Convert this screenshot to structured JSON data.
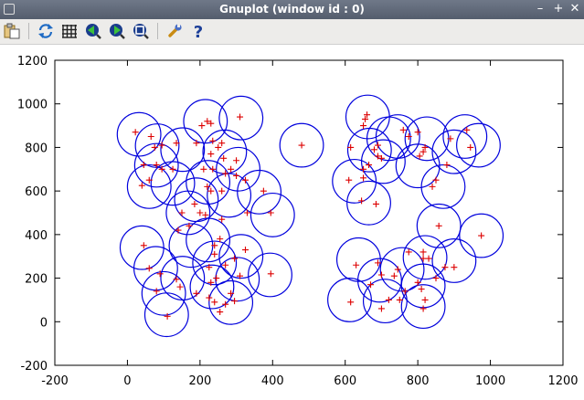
{
  "window": {
    "title": "Gnuplot (window id : 0)",
    "minimize": "–",
    "maximize": "+",
    "close": "✕"
  },
  "toolbar": {
    "items": [
      {
        "icon": "copy-clipboard-icon"
      },
      {
        "icon": "replot-icon"
      },
      {
        "icon": "grid-icon"
      },
      {
        "icon": "zoom-previous-icon"
      },
      {
        "icon": "zoom-next-icon"
      },
      {
        "icon": "unzoom-icon"
      },
      {
        "icon": "settings-wrench-icon"
      },
      {
        "icon": "help-icon"
      }
    ]
  },
  "colors": {
    "circle": "#0000dd",
    "point": "#dd0000",
    "frame": "#000000"
  },
  "chart_data": {
    "type": "scatter",
    "title": "",
    "xlabel": "",
    "ylabel": "",
    "xlim": [
      -200,
      1200
    ],
    "ylim": [
      -200,
      1200
    ],
    "xticks": [
      -200,
      0,
      200,
      400,
      600,
      800,
      1000,
      1200
    ],
    "yticks": [
      -200,
      0,
      200,
      400,
      600,
      800,
      1000,
      1200
    ],
    "xtick_labels": [
      "-200",
      "0",
      "200",
      "400",
      "600",
      "800",
      "1000",
      "1200"
    ],
    "ytick_labels": [
      "-200",
      "0",
      "200",
      "400",
      "600",
      "800",
      "1000",
      "1200"
    ],
    "grid": false,
    "legend": "none",
    "circle_radius": 60,
    "circles": [
      [
        32,
        860
      ],
      [
        82,
        808
      ],
      [
        80,
        718
      ],
      [
        60,
        620
      ],
      [
        152,
        790
      ],
      [
        125,
        635
      ],
      [
        167,
        500
      ],
      [
        190,
        560
      ],
      [
        222,
        640
      ],
      [
        215,
        920
      ],
      [
        268,
        780
      ],
      [
        305,
        700
      ],
      [
        313,
        935
      ],
      [
        280,
        580
      ],
      [
        363,
        595
      ],
      [
        400,
        490
      ],
      [
        480,
        810
      ],
      [
        40,
        340
      ],
      [
        78,
        245
      ],
      [
        100,
        130
      ],
      [
        108,
        32
      ],
      [
        152,
        200
      ],
      [
        175,
        350
      ],
      [
        222,
        375
      ],
      [
        240,
        270
      ],
      [
        233,
        160
      ],
      [
        285,
        88
      ],
      [
        303,
        195
      ],
      [
        313,
        300
      ],
      [
        393,
        215
      ],
      [
        637,
        285
      ],
      [
        662,
        940
      ],
      [
        667,
        788
      ],
      [
        665,
        545
      ],
      [
        705,
        735
      ],
      [
        745,
        850
      ],
      [
        800,
        715
      ],
      [
        825,
        840
      ],
      [
        870,
        620
      ],
      [
        900,
        780
      ],
      [
        930,
        850
      ],
      [
        967,
        810
      ],
      [
        975,
        395
      ],
      [
        858,
        440
      ],
      [
        900,
        280
      ],
      [
        820,
        295
      ],
      [
        815,
        165
      ],
      [
        757,
        240
      ],
      [
        695,
        190
      ],
      [
        710,
        95
      ],
      [
        815,
        70
      ],
      [
        612,
        100
      ],
      [
        625,
        645
      ],
      [
        720,
        840
      ]
    ],
    "points": [
      [
        22,
        870
      ],
      [
        65,
        850
      ],
      [
        75,
        800
      ],
      [
        95,
        810
      ],
      [
        135,
        820
      ],
      [
        80,
        720
      ],
      [
        95,
        700
      ],
      [
        45,
        720
      ],
      [
        60,
        650
      ],
      [
        40,
        625
      ],
      [
        125,
        700
      ],
      [
        190,
        820
      ],
      [
        205,
        900
      ],
      [
        220,
        920
      ],
      [
        230,
        910
      ],
      [
        310,
        940
      ],
      [
        235,
        830
      ],
      [
        250,
        800
      ],
      [
        260,
        820
      ],
      [
        230,
        770
      ],
      [
        265,
        750
      ],
      [
        300,
        740
      ],
      [
        285,
        700
      ],
      [
        270,
        680
      ],
      [
        300,
        670
      ],
      [
        325,
        650
      ],
      [
        210,
        700
      ],
      [
        235,
        700
      ],
      [
        260,
        600
      ],
      [
        220,
        620
      ],
      [
        230,
        600
      ],
      [
        185,
        540
      ],
      [
        200,
        500
      ],
      [
        150,
        500
      ],
      [
        140,
        420
      ],
      [
        170,
        440
      ],
      [
        215,
        490
      ],
      [
        260,
        470
      ],
      [
        330,
        500
      ],
      [
        375,
        600
      ],
      [
        395,
        500
      ],
      [
        480,
        810
      ],
      [
        45,
        350
      ],
      [
        60,
        245
      ],
      [
        90,
        220
      ],
      [
        80,
        140
      ],
      [
        135,
        195
      ],
      [
        145,
        160
      ],
      [
        110,
        25
      ],
      [
        190,
        130
      ],
      [
        230,
        180
      ],
      [
        225,
        250
      ],
      [
        240,
        310
      ],
      [
        240,
        350
      ],
      [
        255,
        380
      ],
      [
        270,
        260
      ],
      [
        245,
        200
      ],
      [
        225,
        110
      ],
      [
        240,
        90
      ],
      [
        270,
        80
      ],
      [
        255,
        45
      ],
      [
        285,
        130
      ],
      [
        295,
        95
      ],
      [
        310,
        210
      ],
      [
        295,
        290
      ],
      [
        325,
        330
      ],
      [
        395,
        220
      ],
      [
        650,
        900
      ],
      [
        660,
        950
      ],
      [
        655,
        930
      ],
      [
        650,
        700
      ],
      [
        665,
        720
      ],
      [
        690,
        810
      ],
      [
        680,
        790
      ],
      [
        700,
        750
      ],
      [
        690,
        760
      ],
      [
        645,
        555
      ],
      [
        685,
        540
      ],
      [
        610,
        650
      ],
      [
        650,
        660
      ],
      [
        615,
        800
      ],
      [
        760,
        880
      ],
      [
        775,
        850
      ],
      [
        800,
        870
      ],
      [
        820,
        800
      ],
      [
        815,
        780
      ],
      [
        805,
        760
      ],
      [
        840,
        620
      ],
      [
        850,
        650
      ],
      [
        880,
        720
      ],
      [
        890,
        840
      ],
      [
        935,
        880
      ],
      [
        945,
        800
      ],
      [
        975,
        395
      ],
      [
        858,
        440
      ],
      [
        815,
        320
      ],
      [
        775,
        320
      ],
      [
        815,
        290
      ],
      [
        830,
        290
      ],
      [
        875,
        250
      ],
      [
        900,
        250
      ],
      [
        850,
        200
      ],
      [
        800,
        180
      ],
      [
        810,
        150
      ],
      [
        820,
        100
      ],
      [
        815,
        60
      ],
      [
        745,
        240
      ],
      [
        735,
        210
      ],
      [
        765,
        140
      ],
      [
        750,
        100
      ],
      [
        720,
        100
      ],
      [
        700,
        60
      ],
      [
        690,
        270
      ],
      [
        700,
        215
      ],
      [
        670,
        170
      ],
      [
        615,
        90
      ],
      [
        630,
        260
      ]
    ]
  }
}
